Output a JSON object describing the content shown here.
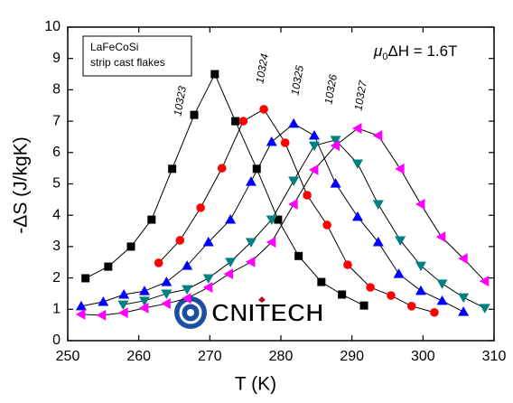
{
  "chart_data": {
    "type": "line",
    "xlabel": "T (K)",
    "ylabel": "-ΔS (J/kgK)",
    "xlim": [
      250,
      310
    ],
    "xticks": [
      250,
      260,
      270,
      280,
      290,
      300,
      310
    ],
    "ylim": [
      0,
      10
    ],
    "yticks": [
      0,
      1,
      2,
      3,
      4,
      5,
      6,
      7,
      8,
      9,
      10
    ],
    "annotation_box": [
      "LaFeCoSi",
      "strip cast flakes"
    ],
    "field_label": {
      "symbol": "μ",
      "subscript": "0",
      "text": "ΔH = 1.6T"
    },
    "logo": "CNITECH",
    "series": [
      {
        "name": "10323",
        "color": "#000000",
        "marker": "square",
        "x": [
          252.5,
          255.7,
          258.9,
          261.8,
          264.7,
          267.8,
          270.7,
          273.6,
          276.6,
          279.6,
          282.5,
          285.7,
          288.6,
          291.7
        ],
        "values": [
          1.99,
          2.36,
          3.0,
          3.86,
          5.48,
          7.2,
          8.5,
          7.0,
          5.48,
          3.86,
          2.7,
          1.87,
          1.47,
          1.12
        ]
      },
      {
        "name": "10324",
        "color": "#ff0000",
        "marker": "circle",
        "x": [
          262.8,
          265.8,
          268.7,
          271.7,
          274.7,
          277.6,
          280.6,
          283.7,
          286.5,
          289.4,
          292.6,
          295.5,
          298.4,
          301.6
        ],
        "values": [
          2.48,
          3.2,
          4.24,
          5.5,
          7.0,
          7.38,
          6.31,
          4.64,
          3.69,
          2.42,
          1.7,
          1.44,
          1.1,
          0.9
        ]
      },
      {
        "name": "10325",
        "color": "#0000ff",
        "marker": "triangle-up",
        "x": [
          251.9,
          255.0,
          257.9,
          260.8,
          263.9,
          266.8,
          269.8,
          272.9,
          275.8,
          278.7,
          281.8,
          284.7,
          287.7,
          290.8,
          293.7,
          296.6,
          299.7,
          302.7,
          305.7
        ],
        "values": [
          1.1,
          1.24,
          1.47,
          1.58,
          1.87,
          2.39,
          3.14,
          3.86,
          5.07,
          6.34,
          6.92,
          6.54,
          5.01,
          3.95,
          3.14,
          2.13,
          1.59,
          1.27,
          0.92
        ]
      },
      {
        "name": "10326",
        "color": "#008080",
        "marker": "triangle-down",
        "x": [
          257.8,
          260.8,
          263.9,
          266.8,
          269.8,
          272.9,
          275.8,
          278.7,
          281.8,
          284.7,
          287.7,
          290.8,
          293.7,
          296.8,
          299.7,
          302.7,
          305.7,
          308.7
        ],
        "values": [
          1.15,
          1.27,
          1.5,
          1.64,
          1.99,
          2.51,
          3.14,
          3.86,
          5.1,
          6.22,
          6.4,
          5.65,
          4.35,
          3.2,
          2.39,
          1.82,
          1.38,
          1.04
        ]
      },
      {
        "name": "10327",
        "color": "#ff00ff",
        "marker": "triangle-left",
        "x": [
          251.9,
          254.8,
          257.9,
          260.8,
          263.9,
          266.8,
          269.8,
          272.7,
          275.8,
          278.7,
          281.8,
          284.7,
          287.7,
          290.8,
          293.7,
          296.8,
          299.7,
          302.6,
          305.7,
          308.7
        ],
        "values": [
          0.84,
          0.81,
          0.89,
          1.04,
          1.18,
          1.35,
          1.7,
          2.13,
          2.51,
          3.14,
          4.35,
          5.45,
          6.22,
          6.77,
          6.54,
          5.48,
          4.35,
          3.31,
          2.62,
          1.9
        ]
      }
    ]
  }
}
